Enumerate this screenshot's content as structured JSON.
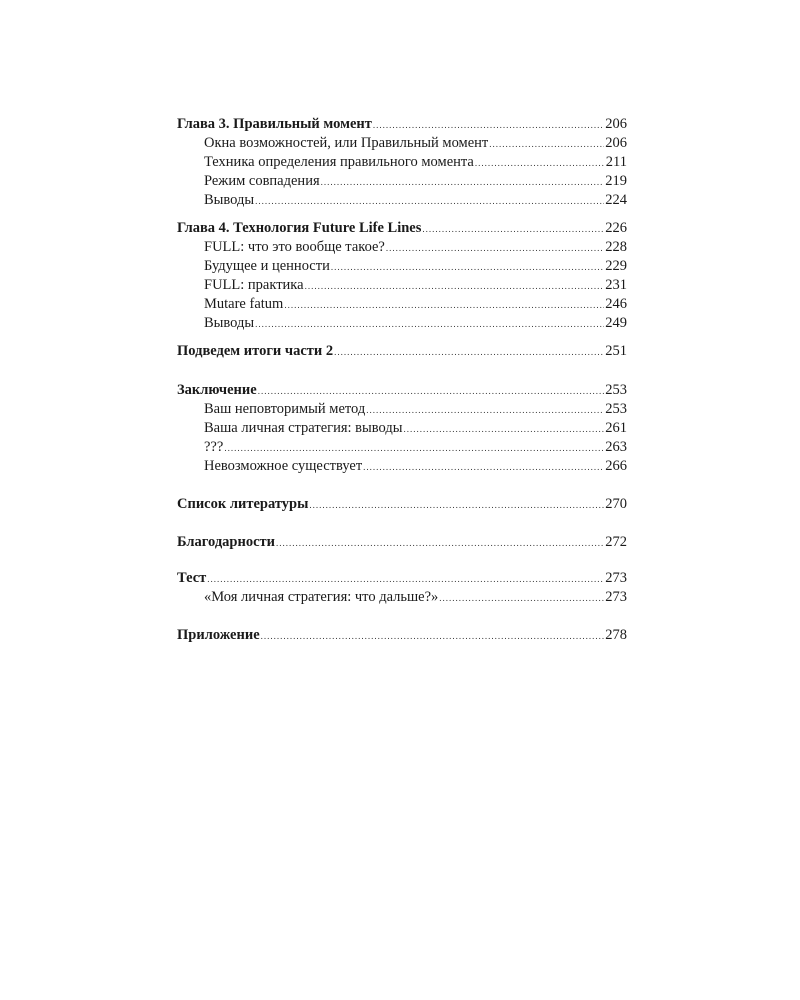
{
  "toc": [
    {
      "entries": [
        {
          "title": "Глава 3. Правильный момент",
          "page": "206",
          "level": "main"
        },
        {
          "title": "Окна возможностей, или Правильный момент",
          "page": "206",
          "level": "sub"
        },
        {
          "title": "Техника определения правильного момента",
          "page": "211",
          "level": "sub"
        },
        {
          "title": "Режим совпадения",
          "page": "219",
          "level": "sub"
        },
        {
          "title": "Выводы",
          "page": "224",
          "level": "sub"
        }
      ]
    },
    {
      "entries": [
        {
          "title": "Глава 4. Технология Future Life Lines",
          "page": "226",
          "level": "main"
        },
        {
          "title": "FULL: что это вообще такое?",
          "page": "228",
          "level": "sub"
        },
        {
          "title": "Будущее и ценности",
          "page": "229",
          "level": "sub"
        },
        {
          "title": "FULL: практика",
          "page": "231",
          "level": "sub"
        },
        {
          "title": "Mutare fatum",
          "page": "246",
          "level": "sub"
        },
        {
          "title": "Выводы",
          "page": "249",
          "level": "sub"
        }
      ]
    },
    {
      "entries": [
        {
          "title": "Подведем итоги части 2",
          "page": "251",
          "level": "main"
        }
      ]
    },
    {
      "entries": [
        {
          "title": "Заключение",
          "page": "253",
          "level": "main"
        },
        {
          "title": "Ваш неповторимый метод",
          "page": "253",
          "level": "sub"
        },
        {
          "title": "Ваша личная стратегия: выводы",
          "page": "261",
          "level": "sub"
        },
        {
          "title": "???",
          "page": "263",
          "level": "sub"
        },
        {
          "title": "Невозможное существует",
          "page": "266",
          "level": "sub"
        }
      ]
    },
    {
      "entries": [
        {
          "title": "Список литературы",
          "page": "270",
          "level": "main"
        }
      ]
    },
    {
      "entries": [
        {
          "title": "Благодарности",
          "page": "272",
          "level": "main"
        }
      ]
    },
    {
      "entries": [
        {
          "title": "Тест",
          "page": "273",
          "level": "main"
        },
        {
          "title": "«Моя личная стратегия: что дальше?»",
          "page": "273",
          "level": "sub"
        }
      ]
    },
    {
      "entries": [
        {
          "title": "Приложение",
          "page": "278",
          "level": "main"
        }
      ]
    }
  ]
}
